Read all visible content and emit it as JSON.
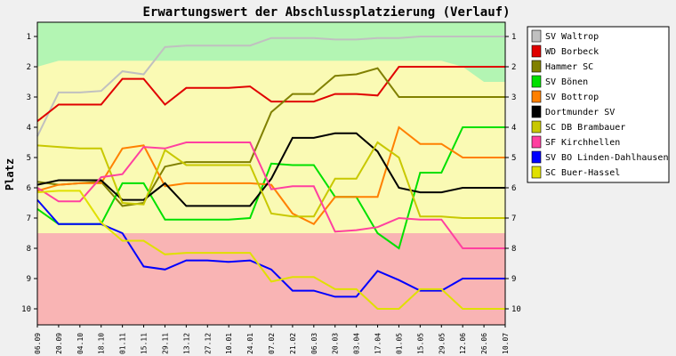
{
  "chart_data": {
    "type": "line",
    "title": "Erwartungswert der Abschlussplatzierung (Verlauf)",
    "ylabel": "Platz",
    "xlabel": "",
    "ylim": [
      1,
      10
    ],
    "y_inverted": true,
    "y_ticks": [
      "1",
      "2",
      "3",
      "4",
      "5",
      "6",
      "7",
      "8",
      "9",
      "10"
    ],
    "x": [
      "06.09",
      "20.09",
      "04.10",
      "18.10",
      "01.11",
      "15.11",
      "29.11",
      "13.12",
      "27.12",
      "10.01",
      "24.01",
      "07.02",
      "21.02",
      "06.03",
      "20.03",
      "03.04",
      "17.04",
      "01.05",
      "15.05",
      "29.05",
      "12.06",
      "26.06",
      "10.07"
    ],
    "legend_position": "right",
    "grid": false,
    "background_bands": [
      {
        "zone": "promotion",
        "color": "#b3f5b3",
        "top_edge": [
          2.0,
          1.8,
          1.8,
          1.8,
          1.8,
          1.8,
          1.8,
          1.8,
          1.8,
          1.8,
          1.8,
          1.8,
          1.8,
          1.8,
          1.8,
          1.8,
          1.8,
          1.8,
          1.8,
          1.8,
          2.0,
          2.5,
          2.5
        ]
      },
      {
        "zone": "middle",
        "color": "#fafab4",
        "from": "promotion",
        "to": 7.5
      },
      {
        "zone": "relegation",
        "color": "#f9b4b4",
        "from": 7.5,
        "to": 10.5
      }
    ],
    "series": [
      {
        "name": "SV Waltrop",
        "color": "#c0c0c0",
        "values": [
          4.3,
          2.85,
          2.85,
          2.8,
          2.15,
          2.25,
          1.35,
          1.3,
          1.3,
          1.3,
          1.3,
          1.05,
          1.05,
          1.05,
          1.1,
          1.1,
          1.05,
          1.05,
          1.0,
          1.0,
          1.0,
          1.0,
          1.0
        ]
      },
      {
        "name": "WD Borbeck",
        "color": "#e00000",
        "values": [
          3.8,
          3.25,
          3.25,
          3.25,
          2.4,
          2.4,
          3.25,
          2.7,
          2.7,
          2.7,
          2.65,
          3.15,
          3.15,
          3.15,
          2.9,
          2.9,
          2.95,
          2.0,
          2.0,
          2.0,
          2.0,
          2.0,
          2.0
        ]
      },
      {
        "name": "Hammer SC",
        "color": "#808000",
        "values": [
          5.8,
          5.9,
          5.85,
          5.8,
          6.6,
          6.5,
          5.3,
          5.15,
          5.15,
          5.15,
          5.15,
          3.5,
          2.9,
          2.9,
          2.3,
          2.25,
          2.05,
          3.0,
          3.0,
          3.0,
          3.0,
          3.0,
          3.0
        ]
      },
      {
        "name": "SV Bönen",
        "color": "#00e000",
        "values": [
          6.7,
          7.2,
          7.2,
          7.2,
          5.85,
          5.85,
          7.05,
          7.05,
          7.05,
          7.05,
          7.0,
          5.2,
          5.25,
          5.25,
          6.3,
          6.3,
          7.5,
          8.0,
          5.5,
          5.5,
          4.0,
          4.0,
          4.0
        ]
      },
      {
        "name": "SV Bottrop",
        "color": "#ff8000",
        "values": [
          6.1,
          5.9,
          5.85,
          5.85,
          4.7,
          4.6,
          5.95,
          5.85,
          5.85,
          5.85,
          5.85,
          5.9,
          6.85,
          7.2,
          6.3,
          6.3,
          6.3,
          4.0,
          4.55,
          4.55,
          5.0,
          5.0,
          5.0
        ]
      },
      {
        "name": "Dortmunder SV",
        "color": "#000000",
        "values": [
          5.9,
          5.75,
          5.75,
          5.75,
          6.4,
          6.4,
          5.85,
          6.6,
          6.6,
          6.6,
          6.6,
          5.7,
          4.35,
          4.35,
          4.2,
          4.2,
          4.8,
          6.0,
          6.15,
          6.15,
          6.0,
          6.0,
          6.0
        ]
      },
      {
        "name": "SC DB Brambauer",
        "color": "#c8c800",
        "values": [
          4.6,
          4.65,
          4.7,
          4.7,
          6.5,
          6.55,
          4.75,
          5.25,
          5.25,
          5.25,
          5.25,
          6.85,
          6.95,
          6.95,
          5.7,
          5.7,
          4.5,
          5.0,
          6.95,
          6.95,
          7.0,
          7.0,
          7.0
        ]
      },
      {
        "name": "SF Kirchhellen",
        "color": "#ff40a0",
        "values": [
          6.0,
          6.45,
          6.45,
          5.65,
          5.55,
          4.65,
          4.7,
          4.5,
          4.5,
          4.5,
          4.5,
          6.05,
          5.95,
          5.95,
          7.45,
          7.4,
          7.3,
          7.0,
          7.05,
          7.05,
          8.0,
          8.0,
          8.0
        ]
      },
      {
        "name": "SV BO Linden-Dahlhausen",
        "color": "#0000ff",
        "values": [
          6.4,
          7.2,
          7.2,
          7.2,
          7.5,
          8.6,
          8.7,
          8.4,
          8.4,
          8.45,
          8.4,
          8.7,
          9.4,
          9.4,
          9.6,
          9.6,
          8.75,
          9.05,
          9.4,
          9.4,
          9.0,
          9.0,
          9.0
        ]
      },
      {
        "name": "SC Buer-Hassel",
        "color": "#e0e000",
        "values": [
          6.15,
          6.1,
          6.1,
          7.15,
          7.75,
          7.75,
          8.2,
          8.15,
          8.15,
          8.15,
          8.15,
          9.1,
          8.95,
          8.95,
          9.35,
          9.35,
          10.0,
          10.0,
          9.35,
          9.35,
          10.0,
          10.0,
          10.0
        ]
      }
    ]
  }
}
